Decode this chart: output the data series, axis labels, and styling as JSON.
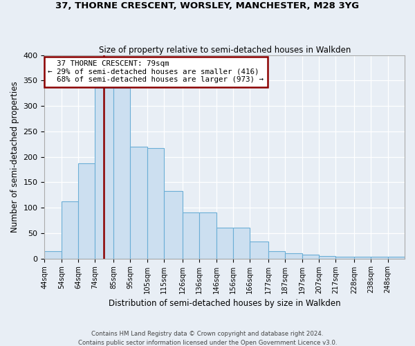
{
  "title": "37, THORNE CRESCENT, WORSLEY, MANCHESTER, M28 3YG",
  "subtitle": "Size of property relative to semi-detached houses in Walkden",
  "xlabel": "Distribution of semi-detached houses by size in Walkden",
  "ylabel": "Number of semi-detached properties",
  "bin_edges": [
    44,
    54,
    64,
    74,
    85,
    95,
    105,
    115,
    126,
    136,
    146,
    156,
    166,
    177,
    187,
    197,
    207,
    217,
    228,
    238,
    248,
    258
  ],
  "bin_labels": [
    "44sqm",
    "54sqm",
    "64sqm",
    "74sqm",
    "85sqm",
    "95sqm",
    "105sqm",
    "115sqm",
    "126sqm",
    "136sqm",
    "146sqm",
    "156sqm",
    "166sqm",
    "177sqm",
    "187sqm",
    "197sqm",
    "207sqm",
    "217sqm",
    "228sqm",
    "238sqm",
    "248sqm"
  ],
  "bar_heights": [
    15,
    113,
    187,
    335,
    335,
    220,
    217,
    133,
    91,
    91,
    60,
    60,
    33,
    15,
    10,
    7,
    5,
    3,
    3,
    3,
    3
  ],
  "property_size": 79,
  "property_label": "37 THORNE CRESCENT: 79sqm",
  "smaller_pct": 29,
  "smaller_count": 416,
  "larger_pct": 68,
  "larger_count": 973,
  "bar_color": "#ccdff0",
  "bar_edge_color": "#6baed6",
  "vline_color": "#8b0000",
  "annotation_box_color": "#8b0000",
  "background_color": "#e8eef5",
  "grid_color": "#ffffff",
  "footer_text": "Contains HM Land Registry data © Crown copyright and database right 2024.\nContains public sector information licensed under the Open Government Licence v3.0.",
  "ylim": [
    0,
    400
  ],
  "yticks": [
    0,
    50,
    100,
    150,
    200,
    250,
    300,
    350,
    400
  ]
}
